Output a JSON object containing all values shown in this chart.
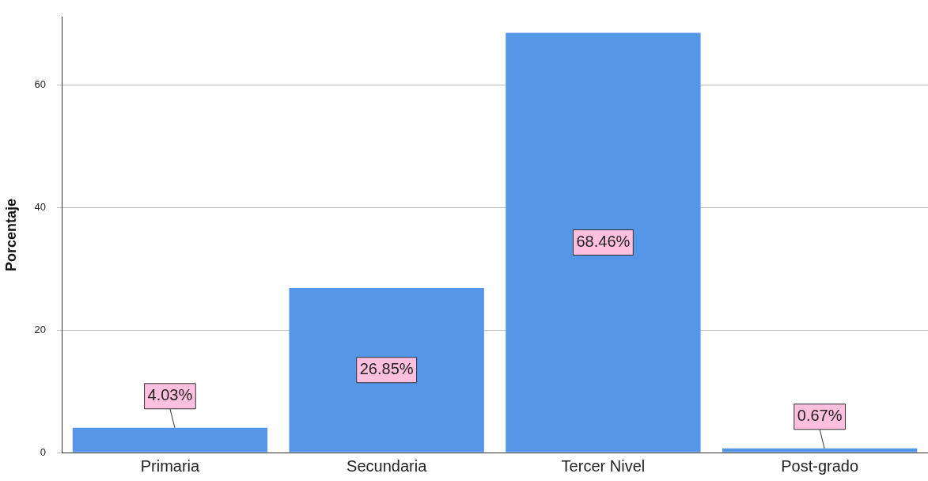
{
  "chart_data": {
    "type": "bar",
    "ylabel": "Porcentaje",
    "categories": [
      "Primaria",
      "Secundaria",
      "Tercer Nivel",
      "Post-grado"
    ],
    "values": [
      4.03,
      26.85,
      68.46,
      0.67
    ],
    "color": "#5596e6",
    "value_labels": [
      "4.03%",
      "26.85%",
      "68.46%",
      "0.67%"
    ],
    "ylim": [
      0,
      71
    ],
    "yticks": [
      0,
      20,
      40,
      60
    ],
    "grid": "y",
    "legend": false
  }
}
